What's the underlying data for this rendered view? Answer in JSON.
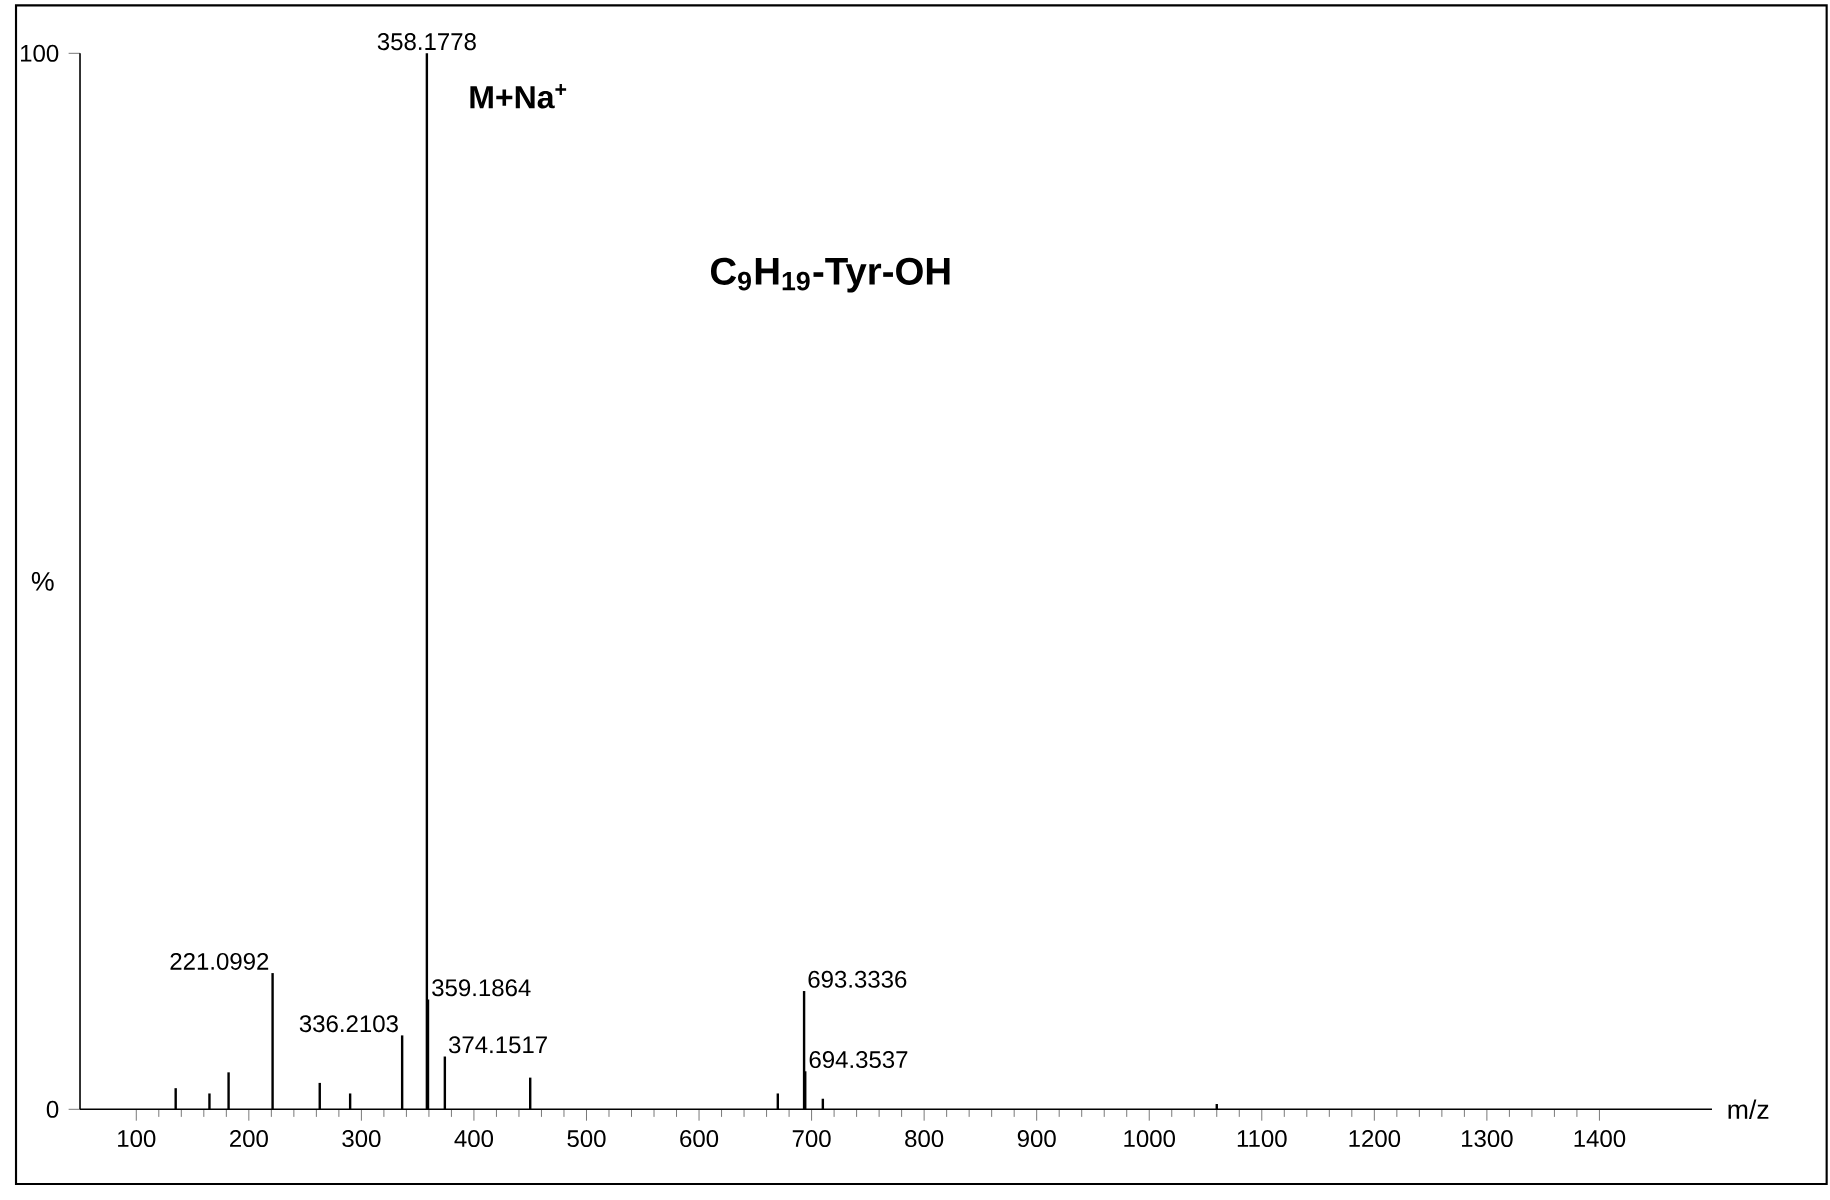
{
  "chart_data": {
    "type": "bar",
    "ylabel": "%",
    "xlabel": "m/z",
    "x": [
      135,
      165,
      182,
      221.0992,
      263,
      290,
      336.2103,
      358.1778,
      359.1864,
      374.1517,
      450,
      670,
      693.3336,
      694.3537,
      710,
      1060
    ],
    "values": [
      2,
      1.5,
      3.5,
      12.9,
      2.5,
      1.5,
      7,
      100,
      10.4,
      5,
      3,
      1.5,
      11.2,
      3.6,
      1,
      0.5
    ],
    "color": "#000000",
    "xlim": [
      50,
      1500
    ],
    "xticks": [
      100,
      200,
      300,
      400,
      500,
      600,
      700,
      800,
      900,
      1000,
      1100,
      1200,
      1300,
      1400
    ],
    "ylim": [
      0,
      100
    ],
    "yticks": [
      0,
      100
    ],
    "annotations": [
      {
        "text": "221.0992",
        "x": 221.0992,
        "y": 12.9
      },
      {
        "text": "336.2103",
        "x": 336.2103,
        "y": 7
      },
      {
        "text": "358.1778",
        "x": 358.1778,
        "y": 100
      },
      {
        "text": "359.1864",
        "x": 359.1864,
        "y": 10.4
      },
      {
        "text": "374.1517",
        "x": 374.1517,
        "y": 5
      },
      {
        "text": "693.3336",
        "x": 693.3336,
        "y": 11.2
      },
      {
        "text": "694.3537",
        "x": 694.3537,
        "y": 3.6
      },
      {
        "text": "M+Na$^{+}$",
        "x": 358.1778,
        "y": 100
      },
      "**C$_{9}$H$_{19}$-Tyr-OH**"
    ]
  }
}
